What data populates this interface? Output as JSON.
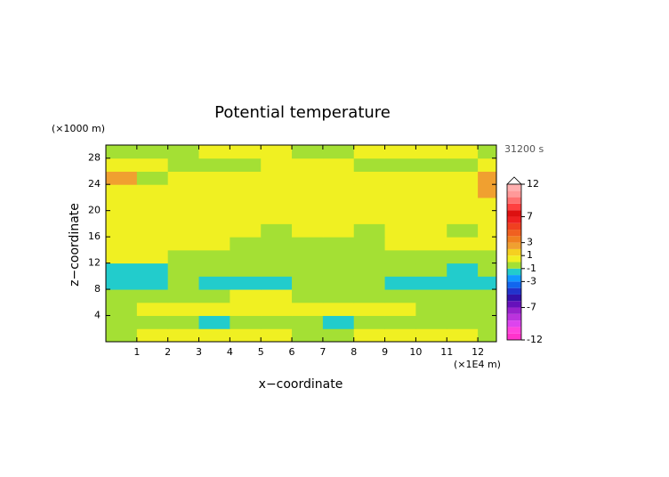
{
  "chart_data": {
    "type": "contour",
    "title": "Potential temperature",
    "x_label": "x−coordinate",
    "y_label": "z−coordinate",
    "x_unit_label": "(×1E4 m)",
    "y_unit_label": "(×1000 m)",
    "time_label": "31200 s",
    "xlim": [
      0,
      12.6
    ],
    "ylim": [
      0,
      30
    ],
    "xticks": [
      1,
      2,
      3,
      4,
      5,
      6,
      7,
      8,
      9,
      10,
      11,
      12
    ],
    "yticks": [
      4,
      8,
      12,
      16,
      20,
      24,
      28
    ],
    "x": [
      0.5,
      1.5,
      2.5,
      3.5,
      4.5,
      5.5,
      6.5,
      7.5,
      8.5,
      9.5,
      10.5,
      11.5,
      12.5
    ],
    "y": [
      1,
      3,
      5,
      7,
      9,
      11,
      13,
      15,
      17,
      19,
      21,
      23,
      25,
      27,
      29
    ],
    "z": [
      [
        -0.5,
        0.5,
        0.5,
        0.5,
        0.5,
        0.5,
        -0.5,
        -0.5,
        0.5,
        0.5,
        0.5,
        0.5,
        -0.5
      ],
      [
        -0.5,
        -0.5,
        -0.5,
        -1.5,
        -0.5,
        -0.5,
        -0.5,
        -1.5,
        -0.5,
        -0.5,
        -0.5,
        -0.5,
        -0.5
      ],
      [
        -0.5,
        0.5,
        0.5,
        0.5,
        0.5,
        0.5,
        0.5,
        0.5,
        0.5,
        0.5,
        -0.5,
        -0.5,
        -0.5
      ],
      [
        -0.5,
        -0.5,
        -0.5,
        -0.5,
        0.5,
        0.5,
        -0.5,
        -0.5,
        -0.5,
        -0.5,
        -0.5,
        -0.5,
        -0.5
      ],
      [
        -1.5,
        -1.5,
        -0.5,
        -1.5,
        -1.5,
        -1.5,
        -0.5,
        -0.5,
        -0.5,
        -1.5,
        -1.5,
        -1.5,
        -1.5
      ],
      [
        -1.5,
        -1.5,
        -0.5,
        -0.5,
        -0.5,
        -0.5,
        -0.5,
        -0.5,
        -0.5,
        -0.5,
        -0.5,
        -1.5,
        -0.5
      ],
      [
        0.5,
        0.5,
        -0.5,
        -0.5,
        -0.5,
        -0.5,
        -0.5,
        -0.5,
        -0.5,
        -0.5,
        -0.5,
        -0.5,
        -0.5
      ],
      [
        0.5,
        0.5,
        0.5,
        0.5,
        -0.5,
        -0.5,
        -0.5,
        -0.5,
        -0.5,
        0.5,
        0.5,
        0.5,
        0.5
      ],
      [
        0.5,
        0.5,
        0.5,
        0.5,
        0.5,
        -0.5,
        0.5,
        0.5,
        -0.5,
        0.5,
        0.5,
        -0.5,
        0.5
      ],
      [
        0.5,
        0.5,
        0.5,
        0.5,
        0.5,
        0.5,
        0.5,
        0.5,
        0.5,
        0.5,
        0.5,
        0.5,
        0.5
      ],
      [
        0.5,
        0.5,
        0.5,
        0.5,
        0.5,
        0.5,
        0.5,
        0.5,
        0.5,
        0.5,
        0.5,
        0.5,
        0.5
      ],
      [
        0.5,
        0.5,
        0.5,
        0.5,
        0.5,
        0.5,
        0.5,
        0.5,
        0.5,
        0.5,
        0.5,
        0.5,
        2.5
      ],
      [
        2.5,
        -0.5,
        0.5,
        0.5,
        0.5,
        0.5,
        0.5,
        0.5,
        0.5,
        0.5,
        0.5,
        0.5,
        2.5
      ],
      [
        0.5,
        0.5,
        -0.5,
        -0.5,
        -0.5,
        0.5,
        0.5,
        0.5,
        -0.5,
        -0.5,
        -0.5,
        -0.5,
        0.5
      ],
      [
        -0.5,
        -0.5,
        -0.5,
        0.5,
        0.5,
        0.5,
        -0.5,
        -0.5,
        0.5,
        0.5,
        0.5,
        0.5,
        -0.5
      ]
    ],
    "levels": [
      -12,
      -11,
      -10,
      -9,
      -8,
      -7,
      -6,
      -5,
      -4,
      -3,
      -2,
      -1,
      0,
      1,
      2,
      3,
      4,
      5,
      6,
      7,
      8,
      9,
      10,
      11,
      12
    ],
    "colors": [
      "#ff33cc",
      "#ff44dd",
      "#dd44ee",
      "#bb33dd",
      "#9922cc",
      "#6611bb",
      "#3311aa",
      "#2233cc",
      "#1166ee",
      "#1199ff",
      "#22cccc",
      "#a4e034",
      "#f0f022",
      "#f5d020",
      "#f0a030",
      "#f08020",
      "#f06020",
      "#f04020",
      "#ee2020",
      "#dd1010",
      "#ff4040",
      "#ff7070",
      "#ff9999",
      "#ffb0b0"
    ],
    "colorbar_ticks": [
      12,
      7,
      3,
      1,
      -1,
      -3,
      -7,
      -12
    ]
  }
}
